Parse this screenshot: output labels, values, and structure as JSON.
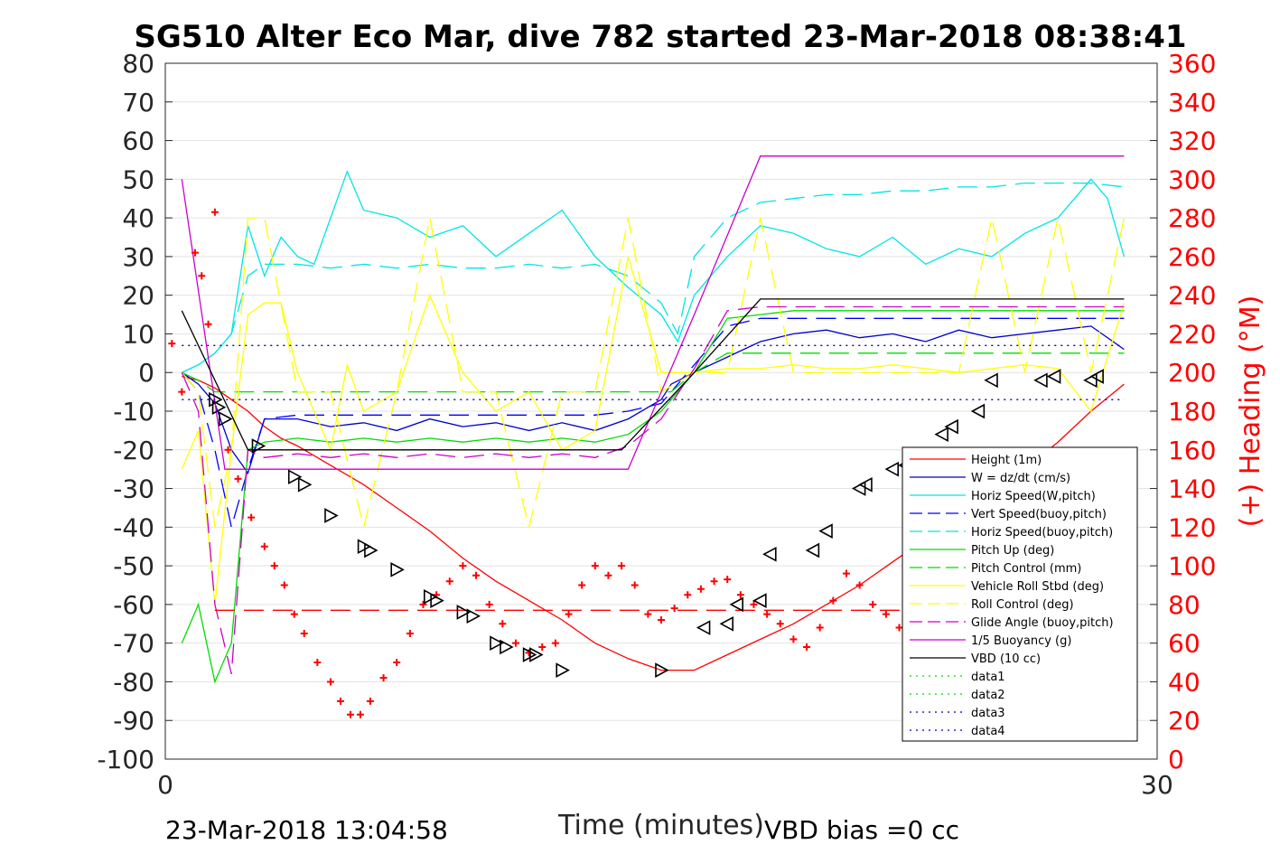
{
  "chart_data": {
    "type": "line",
    "title": "SG510 Alter Eco Mar, dive 782 started 23-Mar-2018 08:38:41",
    "xlabel": "Time (minutes)",
    "ylabel": "",
    "y2label": "(+) Heading (°M)",
    "xlim": [
      0,
      30
    ],
    "ylim": [
      -100,
      80
    ],
    "y2lim": [
      0,
      360
    ],
    "xticks": [
      "0",
      "30"
    ],
    "yticks": [
      "80",
      "70",
      "60",
      "50",
      "40",
      "30",
      "20",
      "10",
      "0",
      "-10",
      "-20",
      "-30",
      "-40",
      "-50",
      "-60",
      "-70",
      "-80",
      "-90",
      "-100"
    ],
    "y2ticks": [
      "360",
      "340",
      "320",
      "300",
      "280",
      "260",
      "240",
      "220",
      "200",
      "180",
      "160",
      "140",
      "120",
      "100",
      "80",
      "60",
      "40",
      "20",
      "0"
    ],
    "footer_left": "23-Mar-2018 13:04:58",
    "footer_right": "VBD bias =0 cc",
    "grid": true,
    "legend_position": "bottom-right",
    "colors": {
      "height": "#ff0000",
      "w": "#0000cc",
      "horiz_w": "#00e5e5",
      "vert_buoy": "#0000ff",
      "horiz_buoy": "#00e5e5",
      "pitch": "#00dd00",
      "pitch_control": "#00dd00",
      "roll": "#ffff00",
      "roll_control": "#ffff00",
      "glide": "#cc00cc",
      "buoyancy": "#cc00cc",
      "vbd": "#000000",
      "heading": "#ff0000",
      "data12": "#00dd00",
      "data34": "#0000aa"
    },
    "series": [
      {
        "name": "Height (1m)",
        "style": "solid",
        "color": "#ff0000",
        "x": [
          0.5,
          1.0,
          1.5,
          2.0,
          2.5,
          3.0,
          3.5,
          4.0,
          5.0,
          6.0,
          7.0,
          8.0,
          9.0,
          10.0,
          11.0,
          12.0,
          13.0,
          14.0,
          15.0,
          16.0,
          17.0,
          18.0,
          19.0,
          20.0,
          21.0,
          22.0,
          23.0,
          24.0,
          25.0,
          26.0,
          27.0,
          28.0,
          29.0
        ],
        "y": [
          -1,
          -2,
          -4,
          -7,
          -10,
          -14,
          -17,
          -19,
          -24,
          -29,
          -35,
          -41,
          -48,
          -54,
          -59,
          -64,
          -70,
          -74,
          -77,
          -77,
          -73,
          -69,
          -65,
          -60,
          -55,
          -49,
          -43,
          -37,
          -31,
          -25,
          -18,
          -10,
          -3
        ]
      },
      {
        "name": "W = dz/dt (cm/s)",
        "style": "solid",
        "color": "#0000cc",
        "x": [
          0.5,
          1.0,
          1.5,
          2.0,
          2.5,
          3.0,
          4.0,
          5.0,
          6.0,
          7.0,
          8.0,
          9.0,
          10.0,
          11.0,
          12.0,
          13.0,
          14.0,
          15.0,
          15.3,
          16.0,
          17.0,
          18.0,
          19.0,
          20.0,
          21.0,
          22.0,
          23.0,
          24.0,
          25.0,
          26.0,
          27.0,
          28.0,
          29.0
        ],
        "y": [
          0,
          -3,
          -8,
          -20,
          -26,
          -12,
          -12,
          -14,
          -13,
          -15,
          -12,
          -14,
          -13,
          -15,
          -13,
          -15,
          -12,
          -7,
          -3,
          0,
          4,
          8,
          10,
          11,
          9,
          10,
          8,
          11,
          9,
          10,
          11,
          12,
          6
        ]
      },
      {
        "name": "Horiz Speed(W,pitch)",
        "style": "solid",
        "color": "#00e5e5",
        "x": [
          0.5,
          1.0,
          1.5,
          2.0,
          2.5,
          3.0,
          3.5,
          4.0,
          4.5,
          5.0,
          5.5,
          6.0,
          7.0,
          8.0,
          9.0,
          10.0,
          11.0,
          12.0,
          13.0,
          14.0,
          15.0,
          15.5,
          16.0,
          17.0,
          18.0,
          19.0,
          20.0,
          21.0,
          22.0,
          23.0,
          24.0,
          25.0,
          26.0,
          27.0,
          28.0,
          28.5,
          29.0
        ],
        "y": [
          0,
          2,
          5,
          10,
          38,
          25,
          35,
          30,
          28,
          40,
          52,
          42,
          40,
          35,
          38,
          30,
          36,
          42,
          30,
          22,
          15,
          8,
          20,
          30,
          38,
          36,
          32,
          30,
          35,
          28,
          32,
          30,
          36,
          40,
          50,
          45,
          30
        ]
      },
      {
        "name": "Vert Speed(buoy,pitch)",
        "style": "dashed",
        "color": "#0000ff",
        "x": [
          0.5,
          1.0,
          1.5,
          2.0,
          2.5,
          3.0,
          4.0,
          5.0,
          6.0,
          7.0,
          8.0,
          9.0,
          10.0,
          11.0,
          12.0,
          13.0,
          14.0,
          15.0,
          16.0,
          17.0,
          18.0,
          19.0,
          20.0,
          21.0,
          22.0,
          23.0,
          24.0,
          25.0,
          26.0,
          27.0,
          28.0,
          29.0
        ],
        "y": [
          0,
          -5,
          -20,
          -40,
          -25,
          -12,
          -11,
          -11,
          -11,
          -11,
          -11,
          -11,
          -11,
          -11,
          -11,
          -11,
          -10,
          -8,
          2,
          12,
          14,
          14,
          14,
          14,
          14,
          14,
          14,
          14,
          14,
          14,
          14,
          14
        ]
      },
      {
        "name": "Horiz Speed(buoy,pitch)",
        "style": "dashed",
        "color": "#00e5e5",
        "x": [
          0.5,
          1.0,
          1.5,
          2.0,
          2.5,
          3.0,
          4.0,
          5.0,
          6.0,
          7.0,
          8.0,
          9.0,
          10.0,
          11.0,
          12.0,
          13.0,
          14.0,
          15.0,
          15.5,
          16.0,
          17.0,
          18.0,
          19.0,
          20.0,
          21.0,
          22.0,
          23.0,
          24.0,
          25.0,
          26.0,
          27.0,
          28.0,
          29.0
        ],
        "y": [
          0,
          2,
          5,
          10,
          25,
          28,
          28,
          27,
          28,
          27,
          28,
          27,
          27,
          28,
          27,
          28,
          25,
          18,
          10,
          30,
          40,
          44,
          45,
          46,
          46,
          47,
          47,
          48,
          48,
          49,
          49,
          49,
          48
        ]
      },
      {
        "name": "Pitch Up (deg)",
        "style": "solid",
        "color": "#00dd00",
        "x": [
          0.5,
          1.0,
          1.5,
          2.0,
          2.5,
          3.0,
          4.0,
          5.0,
          6.0,
          7.0,
          8.0,
          9.0,
          10.0,
          11.0,
          12.0,
          13.0,
          14.0,
          15.0,
          16.0,
          17.0,
          18.0,
          19.0,
          20.0,
          21.0,
          22.0,
          23.0,
          24.0,
          25.0,
          26.0,
          27.0,
          28.0,
          29.0
        ],
        "y": [
          -70,
          -60,
          -80,
          -70,
          -20,
          -18,
          -17,
          -18,
          -17,
          -18,
          -17,
          -18,
          -17,
          -18,
          -17,
          -18,
          -16,
          -10,
          0,
          14,
          15,
          16,
          16,
          16,
          16,
          16,
          16,
          16,
          16,
          16,
          16,
          16
        ]
      },
      {
        "name": "Pitch Control (mm)",
        "style": "dashed",
        "color": "#00dd00",
        "x": [
          0.5,
          1.0,
          1.5,
          2.0,
          2.5,
          3.0,
          15.0,
          15.3,
          16.0,
          17.0,
          29.0
        ],
        "y": [
          0,
          -2,
          -5,
          -5,
          -5,
          -5,
          -5,
          -5,
          0,
          5,
          5
        ]
      },
      {
        "name": "Vehicle Roll Stbd (deg)",
        "style": "solid",
        "color": "#ffff00",
        "x": [
          0.5,
          1.0,
          1.5,
          2.0,
          2.5,
          3.0,
          3.5,
          4.0,
          5.0,
          5.5,
          6.0,
          7.0,
          8.0,
          9.0,
          10.0,
          11.0,
          12.0,
          13.0,
          14.0,
          15.0,
          16.0,
          17.0,
          18.0,
          19.0,
          20.0,
          21.0,
          22.0,
          23.0,
          24.0,
          25.0,
          26.0,
          27.0,
          28.0,
          29.0
        ],
        "y": [
          -25,
          -15,
          -60,
          -20,
          15,
          18,
          18,
          0,
          -20,
          2,
          -10,
          -5,
          20,
          0,
          -10,
          -5,
          -20,
          -15,
          30,
          0,
          0,
          1,
          1,
          2,
          1,
          1,
          2,
          1,
          0,
          1,
          2,
          1,
          -10,
          18
        ]
      },
      {
        "name": "Roll Control (deg)",
        "style": "dashed",
        "color": "#ffff00",
        "x": [
          0.5,
          1.0,
          1.5,
          2.0,
          2.5,
          3.0,
          4.0,
          5.0,
          6.0,
          7.0,
          8.0,
          9.0,
          10.0,
          11.0,
          12.0,
          13.0,
          14.0,
          15.0,
          16.0,
          17.0,
          18.0,
          19.0,
          20.0,
          21.0,
          22.0,
          23.0,
          24.0,
          25.0,
          26.0,
          27.0,
          28.0,
          29.0
        ],
        "y": [
          0,
          -5,
          -40,
          -20,
          40,
          40,
          -5,
          -5,
          -40,
          -5,
          40,
          -5,
          -5,
          -40,
          -5,
          -5,
          40,
          -5,
          0,
          0,
          40,
          0,
          0,
          0,
          0,
          0,
          0,
          40,
          0,
          40,
          0,
          40
        ]
      },
      {
        "name": "Glide Angle (buoy,pitch)",
        "style": "dashed",
        "color": "#cc00cc",
        "x": [
          0.5,
          1.0,
          1.5,
          2.0,
          2.5,
          3.0,
          4.0,
          5.0,
          6.0,
          7.0,
          8.0,
          9.0,
          10.0,
          11.0,
          12.0,
          13.0,
          14.0,
          15.0,
          16.0,
          17.0,
          18.0,
          19.0,
          20.0,
          21.0,
          22.0,
          23.0,
          24.0,
          25.0,
          26.0,
          27.0,
          28.0,
          29.0
        ],
        "y": [
          0,
          -10,
          -60,
          -78,
          -20,
          -22,
          -21,
          -22,
          -21,
          -22,
          -21,
          -22,
          -21,
          -22,
          -21,
          -22,
          -19,
          -12,
          1,
          16,
          17,
          17,
          17,
          17,
          17,
          17,
          17,
          17,
          17,
          17,
          17,
          17
        ]
      },
      {
        "name": "1/5 Buoyancy (g)",
        "style": "solid",
        "color": "#cc00cc",
        "x": [
          0.5,
          1.8,
          3.0,
          14.0,
          16.0,
          18.0,
          29.0
        ],
        "y": [
          50,
          -25,
          -25,
          -25,
          15,
          56,
          56
        ]
      },
      {
        "name": "VBD (10 cc)",
        "style": "solid",
        "color": "#000000",
        "x": [
          0.5,
          2.5,
          4.0,
          13.8,
          16.0,
          18.0,
          29.0
        ],
        "y": [
          16,
          -20,
          -20,
          -20,
          0,
          19,
          19
        ]
      },
      {
        "name": "data1",
        "style": "dotted",
        "color": "#00dd00",
        "x": [],
        "y": []
      },
      {
        "name": "data2",
        "style": "dotted",
        "color": "#00dd00",
        "x": [],
        "y": []
      },
      {
        "name": "data3",
        "style": "dotted",
        "color": "#0000aa",
        "x": [
          0.5,
          29.0
        ],
        "y": [
          7,
          7
        ]
      },
      {
        "name": "data4",
        "style": "dotted",
        "color": "#0000aa",
        "x": [
          0.5,
          29.0
        ],
        "y": [
          -7,
          -7
        ]
      }
    ],
    "heading_reference": {
      "style": "dashed",
      "color": "#ff0000",
      "value_deg": 77,
      "x": [
        1.5,
        29.0
      ]
    },
    "heading_points": {
      "axis": "right",
      "marker": "+",
      "color": "#ff0000",
      "x": [
        0.2,
        0.5,
        0.9,
        1.1,
        1.3,
        1.5,
        1.9,
        2.2,
        2.6,
        3.0,
        3.3,
        3.6,
        3.9,
        4.2,
        4.6,
        5.0,
        5.3,
        5.6,
        5.9,
        6.2,
        6.6,
        7.0,
        7.4,
        7.8,
        8.2,
        8.6,
        9.0,
        9.4,
        9.8,
        10.2,
        10.6,
        11.0,
        11.4,
        11.8,
        12.2,
        12.6,
        13.0,
        13.4,
        13.8,
        14.2,
        14.6,
        15.0,
        15.4,
        15.8,
        16.2,
        16.6,
        17.0,
        17.4,
        17.8,
        18.2,
        18.6,
        19.0,
        19.4,
        19.8,
        20.2,
        20.6,
        21.0,
        21.4,
        21.8,
        22.2,
        22.6,
        23.0,
        23.4,
        23.8,
        24.2,
        24.6,
        25.0,
        25.4,
        25.8,
        26.2,
        26.6,
        27.0,
        27.4,
        27.8
      ],
      "y": [
        215,
        190,
        262,
        250,
        225,
        283,
        160,
        145,
        125,
        110,
        100,
        90,
        75,
        65,
        50,
        40,
        30,
        23,
        23,
        30,
        42,
        50,
        65,
        80,
        85,
        92,
        100,
        95,
        80,
        70,
        60,
        55,
        58,
        60,
        75,
        90,
        100,
        95,
        100,
        90,
        75,
        72,
        78,
        85,
        88,
        92,
        93,
        85,
        80,
        75,
        70,
        62,
        58,
        68,
        82,
        96,
        90,
        80,
        75,
        68,
        60,
        63,
        80,
        85,
        87,
        85,
        80,
        70,
        55,
        48,
        60,
        85,
        98,
        95
      ]
    },
    "triangle_markers": {
      "marker": "triangle",
      "color": "#000000",
      "x": [
        1.5,
        1.6,
        1.8,
        2.8,
        3.9,
        4.2,
        5.0,
        6.0,
        6.2,
        7.0,
        8.0,
        8.2,
        9.0,
        9.3,
        10.0,
        10.3,
        11.0,
        11.2,
        12.0,
        15.0,
        16.3,
        17.0,
        17.3,
        18.0,
        18.3,
        19.6,
        20.0,
        21.0,
        21.2,
        22.0,
        22.4,
        23.5,
        23.8,
        24.6,
        25.0,
        26.5,
        26.9,
        28.0,
        28.2
      ],
      "y": [
        -7,
        -9,
        -12,
        -19,
        -27,
        -29,
        -37,
        -45,
        -46,
        -51,
        -58,
        -59,
        -62,
        -63,
        -70,
        -71,
        -73,
        -73,
        -77,
        -77,
        -66,
        -65,
        -60,
        -59,
        -47,
        -46,
        -41,
        -30,
        -29,
        -25,
        -24,
        -16,
        -14,
        -10,
        -2,
        -2,
        -1,
        -2,
        -1
      ]
    }
  }
}
